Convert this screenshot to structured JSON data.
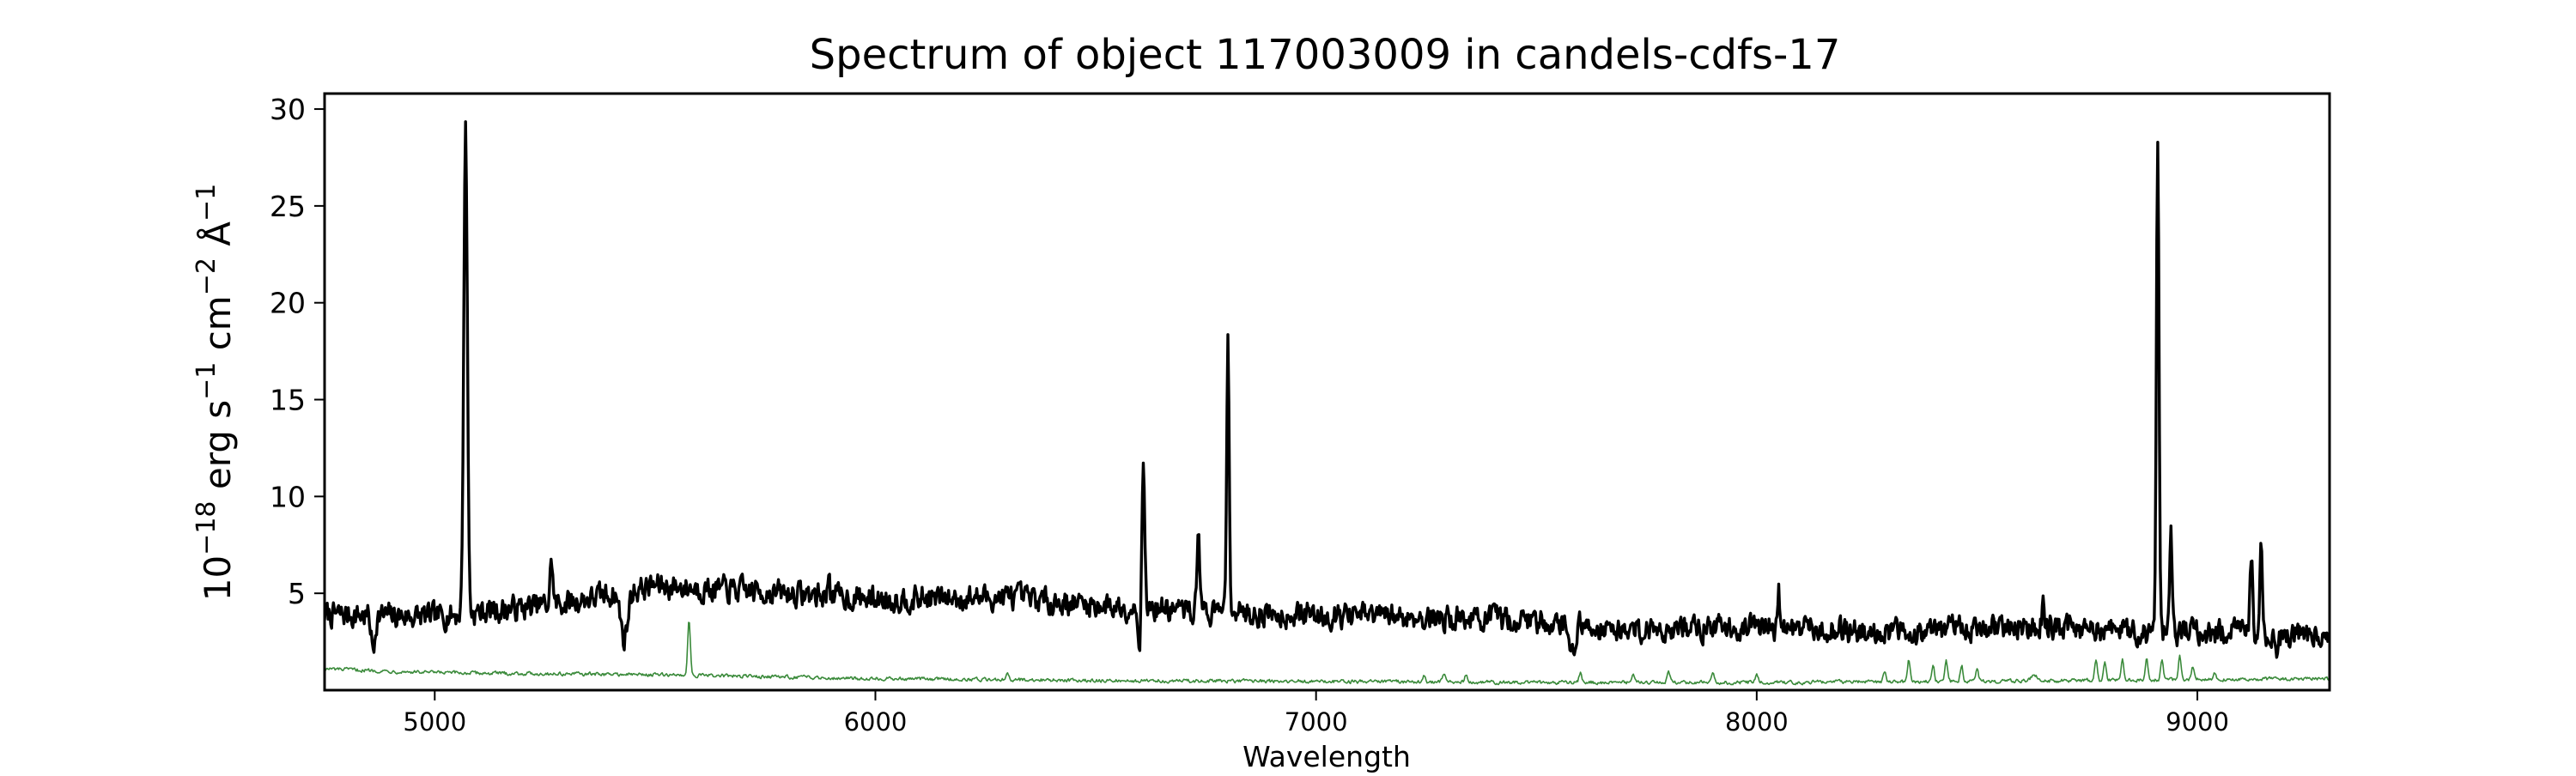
{
  "chart_data": {
    "type": "line",
    "title": "Spectrum of object 117003009 in candels-cdfs-17",
    "xlabel": "Wavelength",
    "ylabel": {
      "base": "10",
      "exp1": "−18",
      "unit1": " erg s",
      "exp2": "−1",
      "unit2": " cm",
      "exp3": "−2",
      "unit3": " Å",
      "exp4": "−1"
    },
    "xlim": [
      4750,
      9300
    ],
    "ylim": [
      0,
      30.8
    ],
    "x_ticks": [
      5000,
      6000,
      7000,
      8000,
      9000
    ],
    "y_ticks": [
      5,
      10,
      15,
      20,
      25,
      30
    ],
    "grid": false,
    "legend": "none",
    "series": [
      {
        "color": "#000000",
        "continuum": [
          [
            4750,
            3.9
          ],
          [
            5000,
            3.8
          ],
          [
            5300,
            4.5
          ],
          [
            5500,
            5.4
          ],
          [
            5800,
            5.0
          ],
          [
            6000,
            4.7
          ],
          [
            6300,
            4.8
          ],
          [
            6500,
            4.4
          ],
          [
            6800,
            4.0
          ],
          [
            7200,
            3.8
          ],
          [
            7500,
            3.6
          ],
          [
            7700,
            3.1
          ],
          [
            8000,
            3.3
          ],
          [
            8300,
            3.0
          ],
          [
            8600,
            3.3
          ],
          [
            8900,
            3.0
          ],
          [
            9300,
            2.9
          ]
        ],
        "lines": [
          {
            "x": 5070,
            "peak": 29.4,
            "width": 4
          },
          {
            "x": 5265,
            "peak": 6.8,
            "width": 3
          },
          {
            "x": 5895,
            "peak": 6.5,
            "width": 2
          },
          {
            "x": 6608,
            "peak": 12.3,
            "width": 3
          },
          {
            "x": 6733,
            "peak": 8.7,
            "width": 3
          },
          {
            "x": 6800,
            "peak": 18.1,
            "width": 3
          },
          {
            "x": 8050,
            "peak": 5.0,
            "width": 2
          },
          {
            "x": 8650,
            "peak": 4.6,
            "width": 3
          },
          {
            "x": 8910,
            "peak": 28.7,
            "width": 3
          },
          {
            "x": 8940,
            "peak": 8.0,
            "width": 3
          },
          {
            "x": 9122,
            "peak": 7.3,
            "width": 3
          },
          {
            "x": 9145,
            "peak": 7.2,
            "width": 3
          }
        ],
        "dips": [
          {
            "x": 4860,
            "depth": 1.8,
            "width": 4
          },
          {
            "x": 5430,
            "depth": 2.4,
            "width": 8
          },
          {
            "x": 6600,
            "depth": 1.6,
            "width": 4
          },
          {
            "x": 7580,
            "depth": 1.6,
            "width": 6
          },
          {
            "x": 9180,
            "depth": 1.2,
            "width": 5
          }
        ]
      },
      {
        "color": "#3a8a3a",
        "continuum": [
          [
            4750,
            1.1
          ],
          [
            5000,
            0.9
          ],
          [
            5500,
            0.8
          ],
          [
            6000,
            0.6
          ],
          [
            6500,
            0.5
          ],
          [
            7000,
            0.45
          ],
          [
            7500,
            0.4
          ],
          [
            8000,
            0.4
          ],
          [
            8500,
            0.45
          ],
          [
            9000,
            0.55
          ],
          [
            9300,
            0.6
          ]
        ],
        "lines": [
          {
            "x": 5577,
            "peak": 3.7,
            "width": 3
          },
          {
            "x": 6300,
            "peak": 1.0,
            "width": 3
          },
          {
            "x": 7245,
            "peak": 0.8,
            "width": 3
          },
          {
            "x": 7290,
            "peak": 0.9,
            "width": 3
          },
          {
            "x": 7340,
            "peak": 0.8,
            "width": 3
          },
          {
            "x": 7600,
            "peak": 0.9,
            "width": 3
          },
          {
            "x": 7720,
            "peak": 0.8,
            "width": 3
          },
          {
            "x": 7800,
            "peak": 0.9,
            "width": 3
          },
          {
            "x": 7900,
            "peak": 0.9,
            "width": 3
          },
          {
            "x": 8000,
            "peak": 0.9,
            "width": 3
          },
          {
            "x": 8290,
            "peak": 1.0,
            "width": 3
          },
          {
            "x": 8345,
            "peak": 1.6,
            "width": 3
          },
          {
            "x": 8400,
            "peak": 1.3,
            "width": 3
          },
          {
            "x": 8430,
            "peak": 1.5,
            "width": 3
          },
          {
            "x": 8465,
            "peak": 1.3,
            "width": 3
          },
          {
            "x": 8500,
            "peak": 1.1,
            "width": 3
          },
          {
            "x": 8630,
            "peak": 0.8,
            "width": 6
          },
          {
            "x": 8770,
            "peak": 1.6,
            "width": 3
          },
          {
            "x": 8790,
            "peak": 1.4,
            "width": 3
          },
          {
            "x": 8830,
            "peak": 1.7,
            "width": 3
          },
          {
            "x": 8885,
            "peak": 1.6,
            "width": 3
          },
          {
            "x": 8920,
            "peak": 1.6,
            "width": 3
          },
          {
            "x": 8960,
            "peak": 1.7,
            "width": 3
          },
          {
            "x": 8990,
            "peak": 1.2,
            "width": 3
          },
          {
            "x": 9040,
            "peak": 0.9,
            "width": 3
          }
        ]
      }
    ]
  }
}
